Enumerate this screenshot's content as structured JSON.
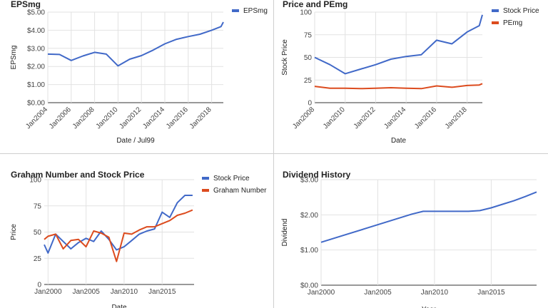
{
  "chart_data": [
    {
      "type": "line",
      "title": "EPSmg",
      "xlabel": "Date / Jul99",
      "ylabel": "EPSmg",
      "x_tick_labels": [
        "Jan2004",
        "Jan2006",
        "Jan2008",
        "Jan2010",
        "Jan2012",
        "Jan2014",
        "Jan2016",
        "Jan2018"
      ],
      "y_tick_labels": [
        "$0.00",
        "$1.00",
        "$2.00",
        "$3.00",
        "$4.00",
        "$5.00"
      ],
      "ylim": [
        0,
        5
      ],
      "xlim": [
        2004,
        2019
      ],
      "grid": true,
      "legend_position": "top-right",
      "series": [
        {
          "name": "EPSmg",
          "color": "#4169c8",
          "x": [
            2004.0,
            2005.0,
            2006.0,
            2007.0,
            2008.0,
            2009.0,
            2010.0,
            2011.0,
            2012.0,
            2013.0,
            2014.0,
            2015.0,
            2016.0,
            2017.0,
            2018.0,
            2018.8,
            2019.0
          ],
          "values": [
            2.68,
            2.66,
            2.33,
            2.58,
            2.78,
            2.68,
            2.03,
            2.4,
            2.6,
            2.9,
            3.25,
            3.5,
            3.65,
            3.78,
            4.0,
            4.2,
            4.45
          ]
        }
      ]
    },
    {
      "type": "line",
      "title": "Price and PEmg",
      "xlabel": "Date",
      "ylabel": "Stock Price",
      "x_tick_labels": [
        "Jan2008",
        "Jan2010",
        "Jan2012",
        "Jan2014",
        "Jan2016",
        "Jan2018"
      ],
      "y_tick_labels": [
        "0",
        "25",
        "50",
        "75",
        "100"
      ],
      "ylim": [
        0,
        100
      ],
      "xlim": [
        2008,
        2019
      ],
      "grid": true,
      "legend_position": "top-right",
      "series": [
        {
          "name": "Stock Price",
          "color": "#4169c8",
          "x": [
            2008.0,
            2009.0,
            2010.0,
            2011.0,
            2012.0,
            2013.0,
            2014.0,
            2015.0,
            2016.0,
            2017.0,
            2018.0,
            2018.8,
            2019.0
          ],
          "values": [
            50,
            42,
            32,
            37,
            42,
            48,
            51,
            53,
            69,
            65,
            78,
            85,
            97
          ]
        },
        {
          "name": "PEmg",
          "color": "#dc4b1e",
          "x": [
            2008.0,
            2009.0,
            2010.0,
            2011.0,
            2012.0,
            2013.0,
            2014.0,
            2015.0,
            2016.0,
            2017.0,
            2018.0,
            2018.8,
            2019.0
          ],
          "values": [
            18,
            16,
            16,
            15.5,
            16,
            16.5,
            16,
            15.5,
            18.5,
            17,
            19,
            19.5,
            21
          ]
        }
      ]
    },
    {
      "type": "line",
      "title": "Graham Number and Stock Price",
      "xlabel": "Date",
      "ylabel": "Price",
      "x_tick_labels": [
        "Jan2000",
        "Jan2005",
        "Jan2010",
        "Jan2015"
      ],
      "y_tick_labels": [
        "0",
        "25",
        "50",
        "75",
        "100"
      ],
      "ylim": [
        0,
        100
      ],
      "xlim": [
        1999.5,
        2019.2
      ],
      "grid": true,
      "legend_position": "top-right",
      "series": [
        {
          "name": "Stock Price",
          "color": "#4169c8",
          "x": [
            1999.5,
            2000.0,
            2001.0,
            2002.0,
            2003.0,
            2004.0,
            2005.0,
            2006.0,
            2007.0,
            2008.0,
            2009.0,
            2010.0,
            2011.0,
            2012.0,
            2013.0,
            2014.0,
            2015.0,
            2016.0,
            2017.0,
            2018.0,
            2019.0
          ],
          "values": [
            38,
            30,
            48,
            41,
            34,
            40,
            44,
            41,
            51,
            43,
            33,
            36,
            42,
            48,
            51,
            53,
            69,
            64,
            78,
            85,
            85
          ]
        },
        {
          "name": "Graham Number",
          "color": "#dc4b1e",
          "x": [
            1999.5,
            2000.0,
            2001.0,
            2002.0,
            2003.0,
            2004.0,
            2005.0,
            2006.0,
            2007.0,
            2008.0,
            2009.0,
            2010.0,
            2011.0,
            2012.0,
            2013.0,
            2014.0,
            2015.0,
            2016.0,
            2017.0,
            2018.0,
            2019.0
          ],
          "values": [
            43,
            46,
            48,
            34,
            42,
            43,
            36,
            51,
            49,
            45,
            22,
            49,
            48,
            52,
            55,
            55,
            58,
            61,
            66,
            68,
            71
          ]
        }
      ]
    },
    {
      "type": "line",
      "title": "Dividend History",
      "xlabel": "Year",
      "ylabel": "Dividend",
      "x_tick_labels": [
        "Jan2000",
        "Jan2005",
        "Jan2010",
        "Jan2015"
      ],
      "y_tick_labels": [
        "$0.00",
        "$1.00",
        "$2.00",
        "$3.00"
      ],
      "ylim": [
        0,
        3
      ],
      "xlim": [
        2000,
        2019
      ],
      "grid": true,
      "legend_position": "none",
      "series": [
        {
          "name": "",
          "color": "#4169c8",
          "x": [
            2000.0,
            2002.0,
            2004.0,
            2006.0,
            2008.0,
            2009.0,
            2010.0,
            2011.0,
            2012.0,
            2013.0,
            2014.0,
            2015.0,
            2016.0,
            2017.0,
            2018.0,
            2019.0
          ],
          "values": [
            1.22,
            1.42,
            1.62,
            1.82,
            2.02,
            2.1,
            2.1,
            2.1,
            2.1,
            2.1,
            2.12,
            2.2,
            2.3,
            2.4,
            2.52,
            2.65
          ]
        }
      ]
    }
  ]
}
